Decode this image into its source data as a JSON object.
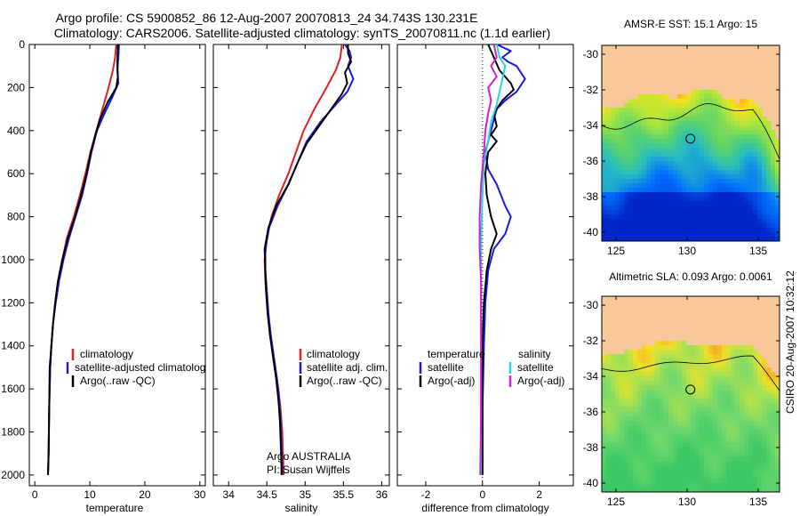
{
  "title": {
    "line1": "Argo profile: CS 5900852_86 12-Aug-2007 20070813_24 34.743S 130.231E",
    "line2": "Climatology: CARS2006. Satellite-adjusted climatology: synTS_20070811.nc (1.1d earlier)"
  },
  "colors": {
    "climatology": "#e02020",
    "satellite": "#1a1adf",
    "argo": "#000000",
    "sat_cyan": "#22d8d8",
    "argo_adj": "#d020d0",
    "land": "#f9c89a"
  },
  "chart_data": [
    {
      "type": "line",
      "panel": "temperature",
      "xlabel": "temperature",
      "ylabel": "",
      "xlim": [
        -1,
        31
      ],
      "ylim": [
        2050,
        0
      ],
      "xticks": [
        "0",
        "10",
        "20",
        "30"
      ],
      "yticks": [
        "0",
        "200",
        "400",
        "600",
        "800",
        "1000",
        "1200",
        "1400",
        "1600",
        "1800",
        "2000"
      ],
      "legend": [
        "climatology",
        "satellite-adjusted climatology",
        "Argo(..raw -QC)"
      ],
      "series": [
        {
          "name": "climatology",
          "color": "#e02020",
          "points": [
            [
              14.8,
              0
            ],
            [
              14.6,
              60
            ],
            [
              14.2,
              120
            ],
            [
              13.4,
              200
            ],
            [
              12.3,
              300
            ],
            [
              11.2,
              400
            ],
            [
              10.1,
              500
            ],
            [
              9.2,
              600
            ],
            [
              8.2,
              700
            ],
            [
              7.1,
              800
            ],
            [
              5.8,
              900
            ],
            [
              5.0,
              1000
            ],
            [
              4.2,
              1100
            ],
            [
              3.7,
              1200
            ],
            [
              3.3,
              1300
            ],
            [
              3.0,
              1400
            ],
            [
              2.8,
              1500
            ],
            [
              2.6,
              1700
            ],
            [
              2.5,
              1900
            ],
            [
              2.4,
              2000
            ]
          ]
        },
        {
          "name": "satellite-adjusted climatology",
          "color": "#1a1adf",
          "points": [
            [
              15.3,
              0
            ],
            [
              15.2,
              60
            ],
            [
              15.0,
              120
            ],
            [
              15.2,
              180
            ],
            [
              14.0,
              250
            ],
            [
              12.5,
              330
            ],
            [
              11.3,
              400
            ],
            [
              10.3,
              500
            ],
            [
              9.5,
              600
            ],
            [
              8.6,
              700
            ],
            [
              7.4,
              800
            ],
            [
              6.2,
              900
            ],
            [
              5.2,
              1000
            ],
            [
              4.4,
              1100
            ],
            [
              3.8,
              1200
            ],
            [
              3.3,
              1300
            ],
            [
              3.0,
              1400
            ],
            [
              2.8,
              1500
            ],
            [
              2.6,
              1700
            ],
            [
              2.5,
              1900
            ],
            [
              2.4,
              2000
            ]
          ]
        },
        {
          "name": "Argo(..raw -QC)",
          "color": "#000000",
          "points": [
            [
              15.1,
              0
            ],
            [
              15.0,
              80
            ],
            [
              15.1,
              150
            ],
            [
              14.8,
              200
            ],
            [
              13.2,
              270
            ],
            [
              11.8,
              350
            ],
            [
              11.0,
              420
            ],
            [
              10.2,
              500
            ],
            [
              9.4,
              600
            ],
            [
              8.4,
              700
            ],
            [
              7.3,
              800
            ],
            [
              6.0,
              900
            ],
            [
              5.0,
              1000
            ],
            [
              4.2,
              1100
            ],
            [
              3.7,
              1200
            ],
            [
              3.3,
              1300
            ],
            [
              3.0,
              1400
            ],
            [
              2.7,
              1500
            ],
            [
              2.6,
              1700
            ],
            [
              2.5,
              1900
            ],
            [
              2.4,
              2000
            ]
          ]
        }
      ]
    },
    {
      "type": "line",
      "panel": "salinity",
      "xlabel": "salinity",
      "ylabel": "",
      "xlim": [
        33.8,
        36.1
      ],
      "ylim": [
        2050,
        0
      ],
      "xticks": [
        "34",
        "34.5",
        "35",
        "35.5",
        "36"
      ],
      "legend": [
        "climatology",
        "satellite adj. clim.",
        "Argo(..raw -QC)"
      ],
      "annotation": [
        "Argo AUSTRALIA",
        "PI: Susan Wijffels"
      ],
      "series": [
        {
          "name": "climatology",
          "color": "#e02020",
          "points": [
            [
              35.48,
              0
            ],
            [
              35.46,
              60
            ],
            [
              35.4,
              120
            ],
            [
              35.28,
              200
            ],
            [
              35.12,
              300
            ],
            [
              34.98,
              400
            ],
            [
              34.88,
              500
            ],
            [
              34.78,
              600
            ],
            [
              34.66,
              700
            ],
            [
              34.56,
              800
            ],
            [
              34.5,
              900
            ],
            [
              34.47,
              1000
            ],
            [
              34.48,
              1100
            ],
            [
              34.5,
              1200
            ],
            [
              34.53,
              1300
            ],
            [
              34.57,
              1400
            ],
            [
              34.61,
              1500
            ],
            [
              34.65,
              1600
            ],
            [
              34.68,
              1700
            ],
            [
              34.7,
              1800
            ],
            [
              34.71,
              1900
            ],
            [
              34.72,
              2000
            ]
          ]
        },
        {
          "name": "satellite adj. clim.",
          "color": "#1a1adf",
          "points": [
            [
              35.52,
              0
            ],
            [
              35.58,
              30
            ],
            [
              35.6,
              60
            ],
            [
              35.56,
              100
            ],
            [
              35.63,
              160
            ],
            [
              35.55,
              220
            ],
            [
              35.4,
              280
            ],
            [
              35.2,
              360
            ],
            [
              35.02,
              450
            ],
            [
              34.9,
              550
            ],
            [
              34.78,
              650
            ],
            [
              34.64,
              750
            ],
            [
              34.53,
              850
            ],
            [
              34.48,
              950
            ],
            [
              34.48,
              1050
            ],
            [
              34.5,
              1150
            ],
            [
              34.52,
              1250
            ],
            [
              34.55,
              1350
            ],
            [
              34.59,
              1450
            ],
            [
              34.63,
              1550
            ],
            [
              34.66,
              1650
            ],
            [
              34.68,
              1750
            ],
            [
              34.69,
              1850
            ],
            [
              34.7,
              1950
            ],
            [
              34.7,
              2000
            ]
          ]
        },
        {
          "name": "Argo(..raw -QC)",
          "color": "#000000",
          "points": [
            [
              35.56,
              0
            ],
            [
              35.56,
              40
            ],
            [
              35.6,
              80
            ],
            [
              35.52,
              130
            ],
            [
              35.55,
              180
            ],
            [
              35.48,
              230
            ],
            [
              35.36,
              290
            ],
            [
              35.2,
              370
            ],
            [
              35.02,
              460
            ],
            [
              34.9,
              550
            ],
            [
              34.78,
              650
            ],
            [
              34.62,
              750
            ],
            [
              34.52,
              850
            ],
            [
              34.47,
              950
            ],
            [
              34.48,
              1050
            ],
            [
              34.49,
              1150
            ],
            [
              34.51,
              1250
            ],
            [
              34.54,
              1350
            ],
            [
              34.58,
              1450
            ],
            [
              34.62,
              1550
            ],
            [
              34.65,
              1650
            ],
            [
              34.67,
              1750
            ],
            [
              34.68,
              1850
            ],
            [
              34.69,
              1950
            ],
            [
              34.69,
              2000
            ]
          ]
        }
      ]
    },
    {
      "type": "line",
      "panel": "difference",
      "xlabel": "difference from climatology",
      "ylabel": "",
      "xlim": [
        -3,
        3.2
      ],
      "ylim": [
        2050,
        0
      ],
      "xticks": [
        "-2",
        "0",
        "2"
      ],
      "legend_temperature": {
        "header": "temperature",
        "items": [
          "satellite",
          "Argo(-adj)"
        ]
      },
      "legend_salinity": {
        "header": "salinity",
        "items": [
          "satellite",
          "Argo(-adj)"
        ]
      },
      "series": [
        {
          "name": "temperature satellite",
          "color": "#1a1adf",
          "points": [
            [
              0.5,
              0
            ],
            [
              1.0,
              30
            ],
            [
              0.7,
              60
            ],
            [
              0.9,
              80
            ],
            [
              1.2,
              100
            ],
            [
              1.5,
              160
            ],
            [
              1.2,
              220
            ],
            [
              0.8,
              260
            ],
            [
              0.5,
              300
            ],
            [
              0.3,
              400
            ],
            [
              0.1,
              500
            ],
            [
              0.2,
              580
            ],
            [
              0.5,
              650
            ],
            [
              0.8,
              750
            ],
            [
              1.0,
              800
            ],
            [
              0.8,
              880
            ],
            [
              0.4,
              950
            ],
            [
              0.2,
              1050
            ],
            [
              0.1,
              1200
            ],
            [
              0.05,
              1400
            ],
            [
              0.0,
              1700
            ],
            [
              0.0,
              2000
            ]
          ]
        },
        {
          "name": "temperature Argo(-adj)",
          "color": "#000000",
          "points": [
            [
              0.2,
              0
            ],
            [
              0.4,
              60
            ],
            [
              0.6,
              120
            ],
            [
              1.0,
              180
            ],
            [
              1.1,
              210
            ],
            [
              0.7,
              260
            ],
            [
              0.4,
              320
            ],
            [
              0.5,
              380
            ],
            [
              0.3,
              420
            ],
            [
              0.5,
              450
            ],
            [
              0.2,
              500
            ],
            [
              0.1,
              600
            ],
            [
              0.15,
              700
            ],
            [
              0.3,
              800
            ],
            [
              0.5,
              880
            ],
            [
              0.3,
              950
            ],
            [
              0.15,
              1050
            ],
            [
              0.05,
              1200
            ],
            [
              0.0,
              1400
            ],
            [
              0.0,
              2000
            ]
          ]
        },
        {
          "name": "salinity satellite",
          "color": "#22d8d8",
          "points": [
            [
              0.5,
              0
            ],
            [
              0.6,
              60
            ],
            [
              0.8,
              100
            ],
            [
              0.7,
              160
            ],
            [
              0.6,
              220
            ],
            [
              0.5,
              280
            ],
            [
              0.3,
              360
            ],
            [
              0.2,
              450
            ],
            [
              0.05,
              550
            ],
            [
              0.0,
              700
            ],
            [
              -0.05,
              900
            ],
            [
              -0.05,
              1100
            ],
            [
              -0.05,
              1300
            ],
            [
              -0.05,
              1500
            ],
            [
              -0.05,
              1700
            ],
            [
              -0.05,
              2000
            ]
          ]
        },
        {
          "name": "salinity Argo(-adj)",
          "color": "#d020d0",
          "points": [
            [
              0.4,
              0
            ],
            [
              0.5,
              60
            ],
            [
              0.3,
              100
            ],
            [
              0.5,
              150
            ],
            [
              0.2,
              200
            ],
            [
              0.3,
              260
            ],
            [
              0.2,
              320
            ],
            [
              0.1,
              400
            ],
            [
              0.05,
              500
            ],
            [
              -0.05,
              650
            ],
            [
              -0.1,
              800
            ],
            [
              -0.1,
              950
            ],
            [
              -0.05,
              1100
            ],
            [
              -0.05,
              1300
            ],
            [
              -0.05,
              1500
            ],
            [
              -0.05,
              1700
            ],
            [
              -0.08,
              2000
            ]
          ]
        }
      ]
    },
    {
      "type": "heatmap",
      "panel": "sst-map",
      "title": "AMSR-E SST: 15.1 Argo: 15",
      "xticks": [
        "125",
        "130",
        "135"
      ],
      "yticks": [
        "-30",
        "-32",
        "-34",
        "-36",
        "-38",
        "-40"
      ],
      "xlim": [
        124,
        136.5
      ],
      "ylim": [
        -40.5,
        -29.5
      ],
      "marker": {
        "lon": 130.231,
        "lat": -34.743
      }
    },
    {
      "type": "heatmap",
      "panel": "sla-map",
      "title": "Altimetric SLA: 0.093 Argo: 0.0061",
      "xticks": [
        "125",
        "130",
        "135"
      ],
      "yticks": [
        "-30",
        "-32",
        "-34",
        "-36",
        "-38",
        "-40"
      ],
      "xlim": [
        124,
        136.5
      ],
      "ylim": [
        -40.5,
        -29.5
      ],
      "marker": {
        "lon": 130.231,
        "lat": -34.743
      }
    }
  ],
  "side_label": "CSIRO 20-Aug-2007 10:32:12"
}
